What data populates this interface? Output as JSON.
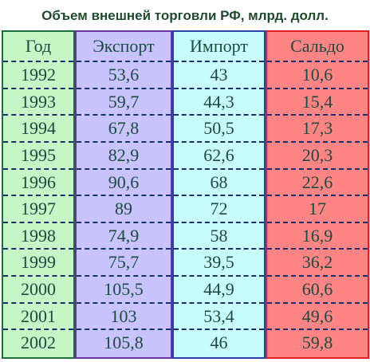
{
  "title": "Объем внешней торговли РФ, млрд. долл.",
  "table": {
    "header": [
      "Год",
      "Экспорт",
      "Импорт",
      "Сальдо"
    ],
    "rows": [
      [
        "1992",
        "53,6",
        "43",
        "10,6"
      ],
      [
        "1993",
        "59,7",
        "44,3",
        "15,4"
      ],
      [
        "1994",
        "67,8",
        "50,5",
        "17,3"
      ],
      [
        "1995",
        "82,9",
        "62,6",
        "20,3"
      ],
      [
        "1996",
        "90,6",
        "68",
        "22,6"
      ],
      [
        "1997",
        "89",
        "72",
        "17"
      ],
      [
        "1998",
        "74,9",
        "58",
        "16,9"
      ],
      [
        "1999",
        "75,7",
        "39,5",
        "36,2"
      ],
      [
        "2000",
        "105,5",
        "44,9",
        "60,6"
      ],
      [
        "2001",
        "103",
        "53,4",
        "49,6"
      ],
      [
        "2002",
        "105,8",
        "46",
        "59,8"
      ]
    ]
  }
}
